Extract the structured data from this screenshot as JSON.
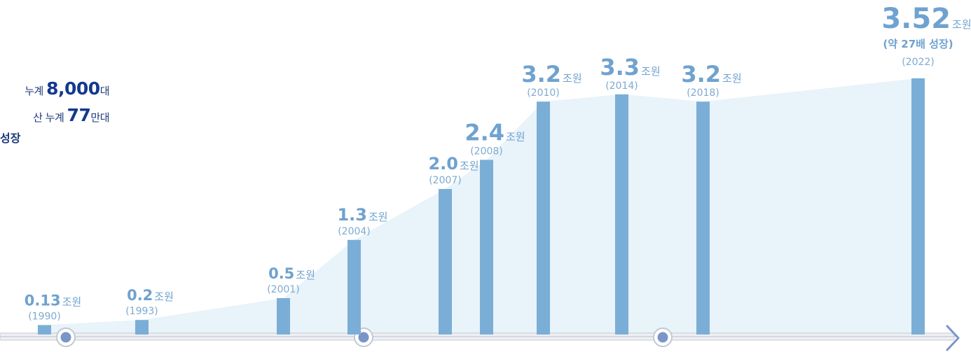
{
  "side_notes": {
    "line1_prefix": "누계",
    "line1_value": "8,000",
    "line1_unit": "대",
    "line2_prefix": "산 누계",
    "line2_value": "77",
    "line2_unit": "만대",
    "line3": "성장"
  },
  "chart_data": {
    "type": "bar",
    "unit": "조원",
    "categories": [
      "(1990)",
      "(1993)",
      "(2001)",
      "(2004)",
      "(2007)",
      "(2008)",
      "(2010)",
      "(2014)",
      "(2018)",
      "(2022)"
    ],
    "value_labels": [
      "0.13",
      "0.2",
      "0.5",
      "1.3",
      "2.0",
      "2.4",
      "3.2",
      "3.3",
      "3.2",
      "3.52"
    ],
    "values": [
      0.13,
      0.2,
      0.5,
      1.3,
      2.0,
      2.4,
      3.2,
      3.3,
      3.2,
      3.52
    ],
    "annotation": "(약 27배 성장)",
    "years": [
      1990,
      1993,
      2001,
      2004,
      2007,
      2008,
      2010,
      2014,
      2018,
      2022
    ],
    "colors": {
      "bar": "#7aaed6",
      "area": "#e8f3fa",
      "axis": "#c5c9d2",
      "marker": "#7b95c8",
      "label": "#6fa2cf"
    }
  }
}
